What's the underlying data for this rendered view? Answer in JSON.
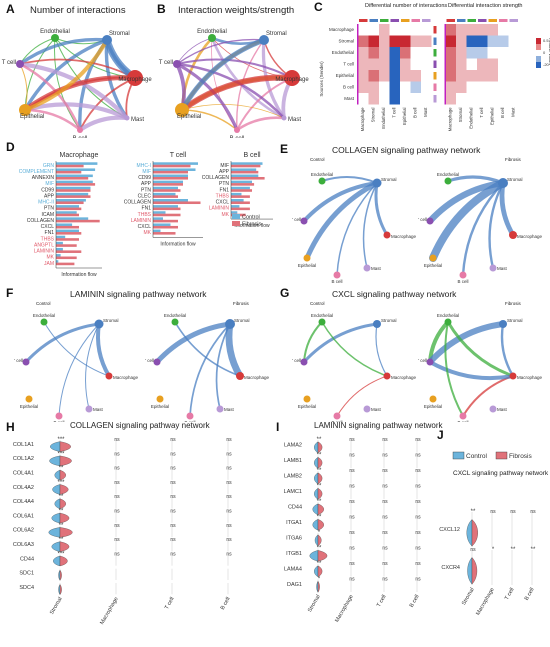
{
  "panels": {
    "A": {
      "letter": "A",
      "title": "Number of interactions"
    },
    "B": {
      "letter": "B",
      "title": "Interaction weights/strength"
    },
    "C": {
      "letter": "C",
      "title_left": "Differential number of interactions",
      "title_right": "Differential interaction strength",
      "ylabel": "Sources (Sender)",
      "legend_label": "Relative values",
      "legend_ticks": [
        "0.5",
        "0",
        "-20"
      ]
    },
    "D": {
      "letter": "D",
      "xlabel": "Information flow",
      "legend": [
        "Control",
        "Fibrosis"
      ]
    },
    "E": {
      "letter": "E",
      "title": "COLLAGEN signaling pathway network",
      "left": "Control",
      "right": "Fibrosis"
    },
    "F": {
      "letter": "F",
      "title": "LAMININ signaling pathway network",
      "left": "Control",
      "right": "Fibrosis"
    },
    "G": {
      "letter": "G",
      "title": "CXCL signaling pathway network",
      "left": "Control",
      "right": "Fibrosis"
    },
    "H": {
      "letter": "H",
      "title": "COLLAGEN signaling pathway network"
    },
    "I": {
      "letter": "I",
      "title": "LAMININ signaling pathway network"
    },
    "J": {
      "letter": "J",
      "title": "CXCL signaling pathway network",
      "legend": [
        "Control",
        "Fibrosis"
      ]
    }
  },
  "cells": [
    "Endothelial",
    "Stromal",
    "Macrophage",
    "Mast",
    "B cell",
    "Epithelial",
    "T cell"
  ],
  "heatmap_rows": [
    "Macrophage",
    "Stromal",
    "Endothelial",
    "T cell",
    "Epithelial",
    "B cell",
    "Mast"
  ],
  "heatmap_cols": [
    "Macrophage",
    "Stromal",
    "Endothelial",
    "T cell",
    "Epithelial",
    "B cell",
    "Mast"
  ],
  "chart_data": [
    {
      "type": "bar",
      "panel": "D",
      "title": "Macrophage",
      "categories": [
        "GRN",
        "COMPLEMENT",
        "ANNEXIN",
        "MIF",
        "CD99",
        "APP",
        "MHC-II",
        "PTN",
        "ICAM",
        "COLLAGEN",
        "CXCL",
        "FN1",
        "THBS",
        "ANGPTL",
        "LAMININ",
        "MK",
        "JAM"
      ],
      "series": [
        {
          "name": "Control",
          "values": [
            0.9,
            0.85,
            0.8,
            0.8,
            0.75,
            0.7,
            0.65,
            0.5,
            0.45,
            0.7,
            0.35,
            0.5,
            0.2,
            0.15,
            0.15,
            0.1,
            0.05
          ]
        },
        {
          "name": "Fibrosis",
          "values": [
            0.6,
            0.55,
            0.7,
            0.85,
            0.75,
            0.75,
            0.6,
            0.55,
            0.5,
            0.95,
            0.5,
            0.55,
            0.5,
            0.45,
            0.55,
            0.45,
            0.4
          ]
        }
      ]
    },
    {
      "type": "bar",
      "panel": "D",
      "title": "T cell",
      "categories": [
        "MHC-I",
        "MIF",
        "CD99",
        "APP",
        "PTN",
        "CLEC",
        "COLLAGEN",
        "FN1",
        "THBS",
        "LAMININ",
        "CXCL",
        "MK"
      ],
      "series": [
        {
          "name": "Control",
          "values": [
            0.9,
            0.85,
            0.7,
            0.6,
            0.5,
            0.45,
            0.7,
            0.5,
            0.25,
            0.2,
            0.35,
            0.15
          ]
        },
        {
          "name": "Fibrosis",
          "values": [
            0.75,
            0.7,
            0.7,
            0.6,
            0.55,
            0.5,
            0.95,
            0.55,
            0.55,
            0.5,
            0.5,
            0.45
          ]
        }
      ]
    },
    {
      "type": "bar",
      "panel": "D",
      "title": "B cell",
      "categories": [
        "MIF",
        "APP",
        "COLLAGEN",
        "PTN",
        "FN1",
        "THBS",
        "CXCL",
        "LAMININ",
        "MK"
      ],
      "series": [
        {
          "name": "Control",
          "values": [
            0.75,
            0.6,
            0.65,
            0.5,
            0.45,
            0.25,
            0.3,
            0.2,
            0.15
          ]
        },
        {
          "name": "Fibrosis",
          "values": [
            0.7,
            0.65,
            0.8,
            0.55,
            0.5,
            0.45,
            0.45,
            0.45,
            0.35
          ]
        }
      ]
    },
    {
      "type": "violin",
      "panel": "H",
      "genes": [
        "COL1A1",
        "COL1A2",
        "COL4A1",
        "COL4A2",
        "COL4A4",
        "COL6A1",
        "COL6A2",
        "COL6A3",
        "CD44",
        "SDC1",
        "SDC4"
      ],
      "groups": [
        "Stromal",
        "Macrophage",
        "T cell",
        "B cell"
      ],
      "significance": [
        [
          "***",
          "ns",
          "ns",
          "ns"
        ],
        [
          "***",
          "ns",
          "ns",
          "ns"
        ],
        [
          "**",
          "ns",
          "ns",
          "ns"
        ],
        [
          "***",
          "ns",
          "ns",
          "ns"
        ],
        [
          "**",
          "ns",
          "ns",
          "ns"
        ],
        [
          "**",
          "ns",
          "ns",
          "ns"
        ],
        [
          "**",
          "ns",
          "ns",
          "ns"
        ],
        [
          "**",
          "ns",
          "ns",
          "ns"
        ],
        [
          "***",
          "ns",
          "ns",
          "ns"
        ],
        [
          "",
          "",
          "",
          ""
        ],
        [
          "",
          "",
          "",
          ""
        ]
      ]
    },
    {
      "type": "violin",
      "panel": "I",
      "genes": [
        "LAMA2",
        "LAMB1",
        "LAMB2",
        "LAMC1",
        "CD44",
        "ITGA1",
        "ITGA6",
        "ITGB1",
        "LAMA4",
        "DAG1"
      ],
      "groups": [
        "Stromal",
        "Macrophage",
        "T cell",
        "B cell"
      ],
      "significance": [
        [
          "**",
          "ns",
          "ns",
          "ns"
        ],
        [
          "**",
          "ns",
          "ns",
          "ns"
        ],
        [
          "**",
          "ns",
          "ns",
          "ns"
        ],
        [
          "**",
          "ns",
          "ns",
          "ns"
        ],
        [
          "**",
          "ns",
          "ns",
          "ns"
        ],
        [
          "**",
          "ns",
          "ns",
          "ns"
        ],
        [
          "*",
          "ns",
          "ns",
          "ns"
        ],
        [
          "**",
          "ns",
          "ns",
          "ns"
        ],
        [
          "**",
          "ns",
          "ns",
          "ns"
        ],
        [
          "*",
          "ns",
          "ns",
          "ns"
        ]
      ]
    },
    {
      "type": "violin",
      "panel": "J",
      "genes": [
        "CXCL12",
        "CXCR4"
      ],
      "groups": [
        "Stromal",
        "Macrophage",
        "T cell",
        "B cell"
      ],
      "significance": [
        [
          "**",
          "ns",
          "ns",
          "ns"
        ],
        [
          "ns",
          "*",
          "**",
          "**"
        ]
      ]
    }
  ],
  "colors": {
    "Endothelial": "#3cae3c",
    "Stromal": "#4a7fc1",
    "Macrophage": "#d63a3a",
    "Mast": "#b89ad6",
    "B cell": "#e67aa6",
    "Epithelial": "#e8a020",
    "T cell": "#8a4fb0",
    "control": "#6cb4dc",
    "fibrosis": "#e0727a",
    "label_blue": "#5aaed8",
    "label_red": "#e05a6a"
  }
}
